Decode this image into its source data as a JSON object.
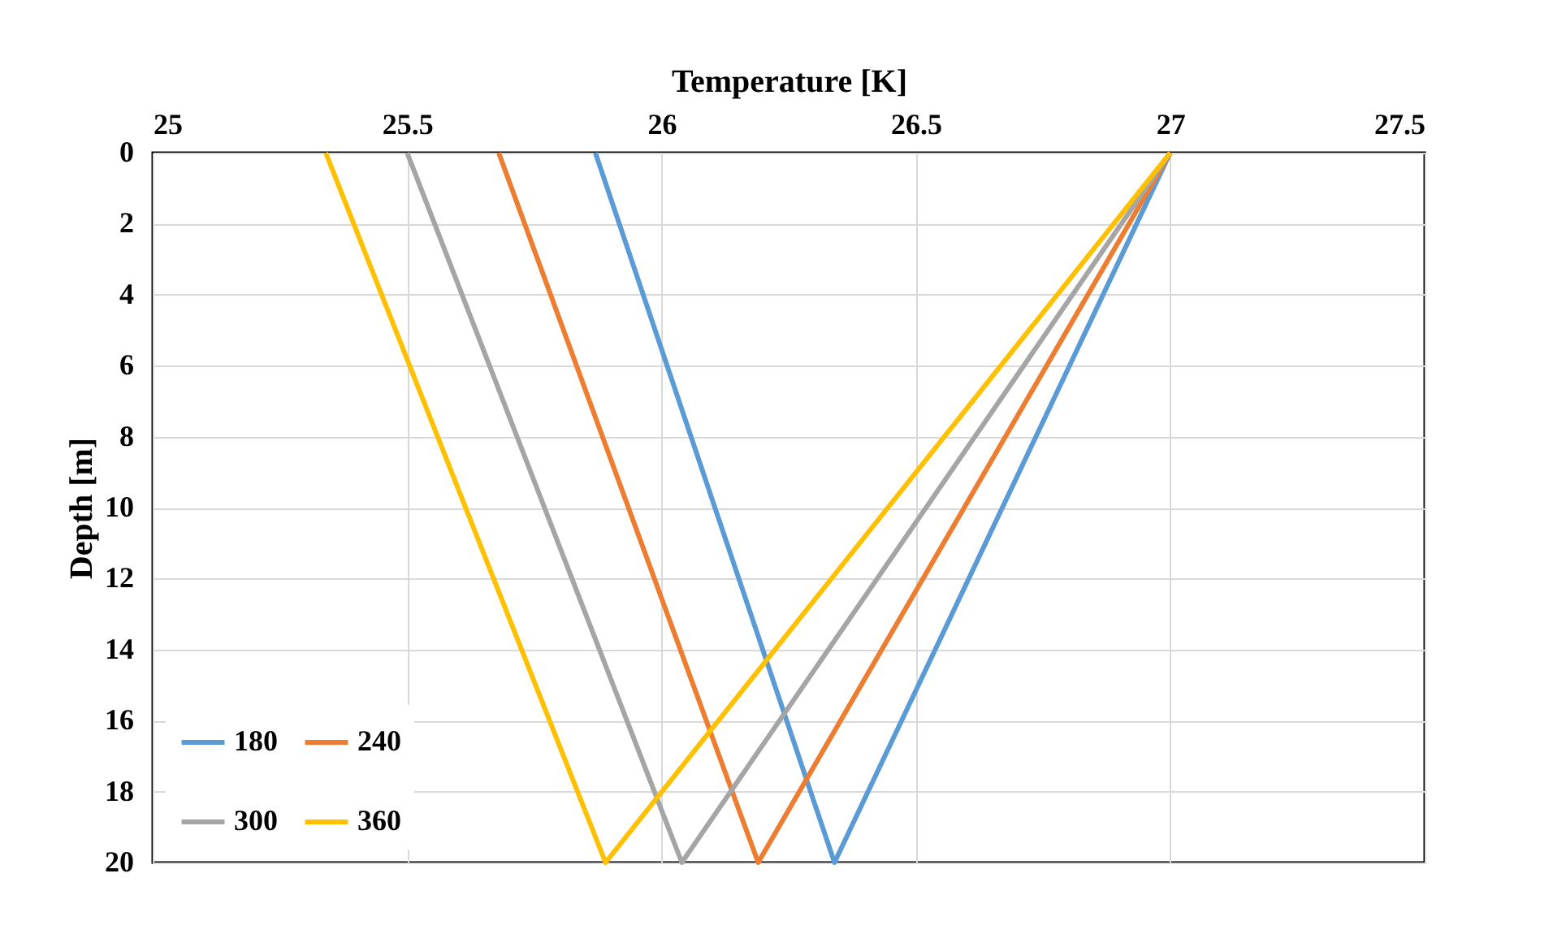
{
  "chart_data": {
    "type": "line",
    "xlabel": "Temperature [K]",
    "ylabel": "Depth [m]",
    "xlim": [
      25,
      27.5
    ],
    "xticks": [
      25,
      25.5,
      26,
      26.5,
      27,
      27.5
    ],
    "ylim": [
      20,
      0
    ],
    "yticks": [
      0,
      2,
      4,
      6,
      8,
      10,
      12,
      14,
      16,
      18,
      20
    ],
    "grid": true,
    "legend": "bottom left",
    "marker": "none",
    "line_style": "solid",
    "series": [
      {
        "name": "180",
        "color": "#5b9bd5",
        "x": [
          25.87,
          26.34,
          27
        ],
        "values": [
          0,
          20,
          0
        ]
      },
      {
        "name": "240",
        "color": "#ed7d31",
        "x": [
          25.68,
          26.19,
          27
        ],
        "values": [
          0,
          20,
          0
        ]
      },
      {
        "name": "300",
        "color": "#a5a5a5",
        "x": [
          25.5,
          26.04,
          27
        ],
        "values": [
          0,
          20,
          0
        ]
      },
      {
        "name": "360",
        "color": "#ffc000",
        "x": [
          25.34,
          25.89,
          27
        ],
        "values": [
          0,
          20,
          0
        ]
      }
    ]
  }
}
